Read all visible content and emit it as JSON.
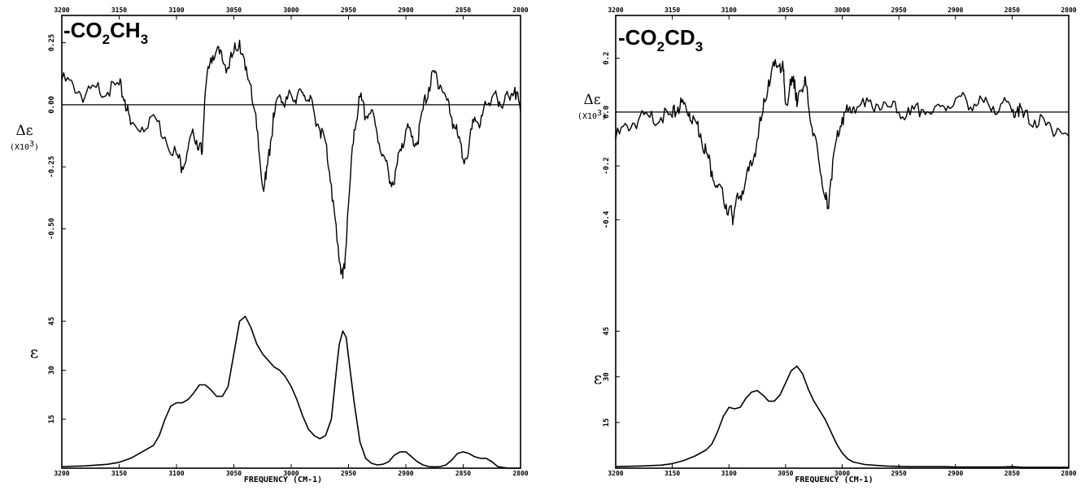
{
  "chart_data": [
    {
      "type": "line",
      "title_main": "-CO",
      "title_sub": "2",
      "title_rest": "CH",
      "title_sub2": "3",
      "xlabel": "FREQUENCY (CM-1)",
      "xlim": [
        3200,
        2800
      ],
      "x_ticks": [
        "3200",
        "3150",
        "3100",
        "3050",
        "3000",
        "2950",
        "2900",
        "2850",
        "2800"
      ],
      "cd_ylabel": "Δε",
      "cd_unit": "(X10",
      "cd_unit_exp": "3",
      "cd_unit_close": ")",
      "cd_ticks": [
        "0.25",
        "0.00",
        "-0.25",
        "-0.50"
      ],
      "cd_ylim": [
        -0.75,
        0.35
      ],
      "abs_ylabel": "ε",
      "abs_ticks": [
        "45",
        "30",
        "15"
      ],
      "abs_ylim": [
        0,
        55
      ],
      "series": [
        {
          "role": "cd",
          "x": [
            3200,
            3190,
            3180,
            3170,
            3160,
            3150,
            3145,
            3140,
            3130,
            3120,
            3110,
            3100,
            3095,
            3090,
            3085,
            3080,
            3078,
            3075,
            3070,
            3065,
            3060,
            3055,
            3050,
            3045,
            3040,
            3035,
            3030,
            3025,
            3022,
            3018,
            3015,
            3010,
            3005,
            3000,
            2995,
            2990,
            2985,
            2980,
            2975,
            2970,
            2965,
            2960,
            2957,
            2955,
            2953,
            2950,
            2945,
            2940,
            2935,
            2930,
            2925,
            2920,
            2915,
            2910,
            2905,
            2900,
            2895,
            2890,
            2885,
            2880,
            2875,
            2870,
            2865,
            2860,
            2855,
            2850,
            2845,
            2840,
            2835,
            2830,
            2825,
            2820,
            2815,
            2810,
            2805,
            2800
          ],
          "y": [
            0.1,
            0.08,
            0.03,
            0.07,
            0.05,
            0.08,
            0.02,
            -0.08,
            -0.09,
            -0.04,
            -0.13,
            -0.2,
            -0.25,
            -0.18,
            -0.12,
            -0.16,
            -0.2,
            0.05,
            0.19,
            0.22,
            0.18,
            0.15,
            0.21,
            0.26,
            0.14,
            0.08,
            -0.1,
            -0.33,
            -0.3,
            -0.15,
            -0.05,
            0.04,
            0.01,
            0.04,
            0.03,
            0.05,
            0.02,
            -0.03,
            -0.1,
            -0.15,
            -0.32,
            -0.55,
            -0.65,
            -0.7,
            -0.62,
            -0.4,
            -0.1,
            0.03,
            -0.05,
            -0.02,
            -0.12,
            -0.2,
            -0.28,
            -0.32,
            -0.18,
            -0.1,
            -0.13,
            -0.15,
            -0.02,
            0.07,
            0.13,
            0.08,
            0.03,
            -0.05,
            -0.12,
            -0.22,
            -0.17,
            -0.05,
            -0.08,
            0.0,
            0.03,
            0.02,
            0.0,
            0.03,
            0.07,
            -0.03
          ]
        },
        {
          "role": "absorbance",
          "x": [
            3200,
            3180,
            3160,
            3150,
            3140,
            3130,
            3120,
            3115,
            3110,
            3105,
            3100,
            3095,
            3090,
            3085,
            3080,
            3075,
            3070,
            3065,
            3060,
            3055,
            3050,
            3045,
            3040,
            3035,
            3030,
            3025,
            3020,
            3015,
            3010,
            3005,
            3000,
            2995,
            2990,
            2985,
            2980,
            2975,
            2970,
            2965,
            2960,
            2958,
            2955,
            2952,
            2950,
            2945,
            2940,
            2935,
            2930,
            2925,
            2920,
            2915,
            2910,
            2905,
            2900,
            2895,
            2890,
            2885,
            2880,
            2875,
            2870,
            2865,
            2860,
            2855,
            2850,
            2845,
            2840,
            2835,
            2830,
            2825,
            2820,
            2815,
            2810,
            2800
          ],
          "y": [
            0.5,
            0.7,
            1.2,
            1.8,
            3,
            5,
            7,
            10,
            15,
            19,
            20,
            20,
            21,
            23,
            25.5,
            25.5,
            24,
            22,
            22,
            25,
            35,
            45,
            46.5,
            43,
            38,
            35,
            33,
            31,
            30,
            28,
            25,
            21,
            16,
            12,
            10,
            9,
            10,
            15,
            32,
            38,
            42,
            40,
            34,
            20,
            8,
            3,
            1.5,
            1,
            1.2,
            2,
            4,
            5,
            5,
            3.5,
            2,
            1,
            0.5,
            0.4,
            0.5,
            1,
            2.5,
            4.5,
            5,
            4.5,
            3.5,
            3,
            3,
            2,
            0.5,
            0.2,
            0,
            0
          ]
        }
      ]
    },
    {
      "type": "line",
      "title_main": "-CO",
      "title_sub": "2",
      "title_rest": "CD",
      "title_sub2": "3",
      "xlabel": "FREQUENCY (CM-1)",
      "xlim": [
        3200,
        2800
      ],
      "x_ticks": [
        "3200",
        "3150",
        "3100",
        "3050",
        "3000",
        "2950",
        "2900",
        "2850",
        "2800"
      ],
      "cd_ylabel": "Δε",
      "cd_unit": "(X10",
      "cd_unit_exp": "3",
      "cd_unit_close": ")",
      "cd_ticks": [
        "0.2",
        "0.0",
        "-0.2",
        "-0.4"
      ],
      "cd_ylim": [
        -0.55,
        0.35
      ],
      "abs_ylabel": "ε",
      "abs_ticks": [
        "45",
        "30",
        "15"
      ],
      "abs_ylim": [
        0,
        55
      ],
      "series": [
        {
          "role": "cd",
          "x": [
            3200,
            3190,
            3180,
            3170,
            3160,
            3150,
            3145,
            3140,
            3135,
            3130,
            3125,
            3120,
            3115,
            3110,
            3105,
            3100,
            3097,
            3095,
            3090,
            3085,
            3080,
            3075,
            3070,
            3065,
            3060,
            3055,
            3052,
            3050,
            3045,
            3042,
            3040,
            3036,
            3033,
            3030,
            3025,
            3020,
            3015,
            3013,
            3010,
            3005,
            3000,
            2995,
            2990,
            2980,
            2970,
            2960,
            2950,
            2940,
            2930,
            2920,
            2910,
            2900,
            2890,
            2880,
            2870,
            2860,
            2850,
            2845,
            2840,
            2830,
            2820,
            2810,
            2800
          ],
          "y": [
            -0.1,
            -0.05,
            -0.03,
            -0.02,
            -0.02,
            -0.02,
            0.02,
            0.03,
            0.0,
            -0.03,
            -0.08,
            -0.15,
            -0.22,
            -0.28,
            -0.32,
            -0.36,
            -0.39,
            -0.36,
            -0.31,
            -0.25,
            -0.2,
            -0.1,
            0.0,
            0.12,
            0.17,
            0.18,
            0.15,
            0.03,
            0.1,
            0.12,
            0.02,
            0.08,
            0.13,
            0.03,
            -0.08,
            -0.2,
            -0.32,
            -0.36,
            -0.25,
            -0.1,
            -0.02,
            0.0,
            0.02,
            0.02,
            0.03,
            0.02,
            0.0,
            -0.01,
            0.01,
            0.0,
            0.02,
            0.05,
            0.04,
            0.03,
            0.02,
            0.03,
            0.0,
            0.02,
            -0.02,
            -0.03,
            -0.05,
            -0.06,
            -0.09
          ]
        },
        {
          "role": "absorbance",
          "x": [
            3200,
            3180,
            3160,
            3150,
            3140,
            3130,
            3120,
            3115,
            3110,
            3105,
            3100,
            3095,
            3090,
            3085,
            3080,
            3075,
            3070,
            3065,
            3060,
            3055,
            3050,
            3045,
            3040,
            3035,
            3030,
            3025,
            3020,
            3015,
            3010,
            3005,
            3000,
            2995,
            2990,
            2980,
            2970,
            2960,
            2950,
            2940,
            2930,
            2920,
            2910,
            2900,
            2890,
            2880,
            2870,
            2860,
            2850,
            2840,
            2830,
            2820,
            2810,
            2800
          ],
          "y": [
            0.5,
            0.7,
            1,
            1.5,
            2.5,
            4,
            6,
            8,
            12,
            17,
            20,
            19.5,
            20,
            23,
            25,
            25.5,
            24,
            22,
            22,
            24,
            28,
            32,
            33.5,
            31,
            26,
            22,
            19,
            16,
            12,
            8,
            5,
            3,
            2,
            1.2,
            0.9,
            0.7,
            0.6,
            0.5,
            0.5,
            0.5,
            0.5,
            0.4,
            0.4,
            0.4,
            0.4,
            0.4,
            0.5,
            0.3,
            0.3,
            0.3,
            0.3,
            0.3
          ]
        }
      ]
    }
  ]
}
